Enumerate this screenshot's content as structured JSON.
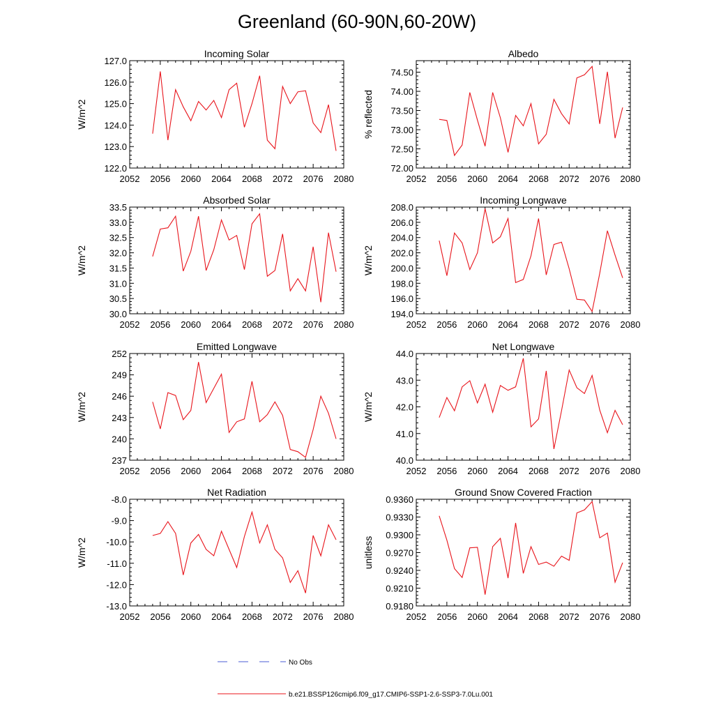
{
  "figure": {
    "title": "Greenland (60-90N,60-20W)",
    "legend": [
      {
        "label": "No Obs",
        "color": "#4a5bd4",
        "dash": "dashed"
      },
      {
        "label": "b.e21.BSSP126cmip6.f09_g17.CMIP6-SSP1-2.6-SSP3-7.0Lu.001",
        "color": "#e8141b",
        "dash": "solid"
      }
    ]
  },
  "chart_data": [
    {
      "type": "line",
      "title": "Incoming Solar",
      "ylabel": "W/m^2",
      "xlim": [
        2052,
        2080
      ],
      "ylim": [
        122.0,
        127.0
      ],
      "xticks": [
        2052,
        2056,
        2060,
        2064,
        2068,
        2072,
        2076,
        2080
      ],
      "yticks": [
        "122.0",
        "123.0",
        "124.0",
        "125.0",
        "126.0",
        "127.0"
      ],
      "series": [
        {
          "x": [
            2055,
            2056,
            2057,
            2058,
            2059,
            2060,
            2061,
            2062,
            2063,
            2064,
            2065,
            2066,
            2067,
            2068,
            2069,
            2070,
            2071,
            2072,
            2073,
            2074,
            2075,
            2076,
            2077,
            2078,
            2079
          ],
          "values": [
            123.6,
            126.5,
            123.3,
            125.65,
            124.85,
            124.2,
            125.1,
            124.7,
            125.15,
            124.35,
            125.65,
            125.95,
            123.9,
            125.0,
            126.3,
            123.3,
            122.9,
            125.8,
            125.0,
            125.55,
            125.6,
            124.1,
            123.65,
            124.95,
            122.8
          ]
        }
      ]
    },
    {
      "type": "line",
      "title": "Albedo",
      "ylabel": "% reflected",
      "xlim": [
        2052,
        2080
      ],
      "ylim": [
        72.0,
        74.8
      ],
      "xticks": [
        2052,
        2056,
        2060,
        2064,
        2068,
        2072,
        2076,
        2080
      ],
      "yticks": [
        "72.00",
        "72.50",
        "73.00",
        "73.50",
        "74.00",
        "74.50"
      ],
      "series": [
        {
          "x": [
            2055,
            2056,
            2057,
            2058,
            2059,
            2060,
            2061,
            2062,
            2063,
            2064,
            2065,
            2066,
            2067,
            2068,
            2069,
            2070,
            2071,
            2072,
            2073,
            2074,
            2075,
            2076,
            2077,
            2078,
            2079
          ],
          "values": [
            73.27,
            73.24,
            72.33,
            72.6,
            73.97,
            73.25,
            72.57,
            73.97,
            73.31,
            72.41,
            73.37,
            73.1,
            73.68,
            72.63,
            72.88,
            73.79,
            73.42,
            73.15,
            74.35,
            74.43,
            74.65,
            73.15,
            74.51,
            72.78,
            73.58
          ]
        }
      ]
    },
    {
      "type": "line",
      "title": "Absorbed Solar",
      "ylabel": "W/m^2",
      "xlim": [
        2052,
        2080
      ],
      "ylim": [
        30.0,
        33.5
      ],
      "xticks": [
        2052,
        2056,
        2060,
        2064,
        2068,
        2072,
        2076,
        2080
      ],
      "yticks": [
        "30.0",
        "30.5",
        "31.0",
        "31.5",
        "32.0",
        "32.5",
        "33.0",
        "33.5"
      ],
      "series": [
        {
          "x": [
            2055,
            2056,
            2057,
            2058,
            2059,
            2060,
            2061,
            2062,
            2063,
            2064,
            2065,
            2066,
            2067,
            2068,
            2069,
            2070,
            2071,
            2072,
            2073,
            2074,
            2075,
            2076,
            2077,
            2078,
            2079
          ],
          "values": [
            31.88,
            32.78,
            32.82,
            33.2,
            31.4,
            32.05,
            33.2,
            31.42,
            32.1,
            33.08,
            32.42,
            32.57,
            31.45,
            32.95,
            33.28,
            31.23,
            31.42,
            32.62,
            30.75,
            31.15,
            30.75,
            32.2,
            30.38,
            32.66,
            31.38
          ]
        }
      ]
    },
    {
      "type": "line",
      "title": "Incoming Longwave",
      "ylabel": "W/m^2",
      "xlim": [
        2052,
        2080
      ],
      "ylim": [
        194.0,
        208.0
      ],
      "xticks": [
        2052,
        2056,
        2060,
        2064,
        2068,
        2072,
        2076,
        2080
      ],
      "yticks": [
        "194.0",
        "196.0",
        "198.0",
        "200.0",
        "202.0",
        "204.0",
        "206.0",
        "208.0"
      ],
      "series": [
        {
          "x": [
            2055,
            2056,
            2057,
            2058,
            2059,
            2060,
            2061,
            2062,
            2063,
            2064,
            2065,
            2066,
            2067,
            2068,
            2069,
            2070,
            2071,
            2072,
            2073,
            2074,
            2075,
            2076,
            2077,
            2078,
            2079
          ],
          "values": [
            203.6,
            199.0,
            204.6,
            203.3,
            199.8,
            202.0,
            207.8,
            203.3,
            204.1,
            206.5,
            198.1,
            198.5,
            201.6,
            206.5,
            199.1,
            203.1,
            203.4,
            199.9,
            195.9,
            195.8,
            194.3,
            199.3,
            204.9,
            201.7,
            198.7
          ]
        }
      ]
    },
    {
      "type": "line",
      "title": "Emitted Longwave",
      "ylabel": "W/m^2",
      "xlim": [
        2052,
        2080
      ],
      "ylim": [
        237,
        252
      ],
      "xticks": [
        2052,
        2056,
        2060,
        2064,
        2068,
        2072,
        2076,
        2080
      ],
      "yticks": [
        "237",
        "240",
        "243",
        "246",
        "249",
        "252"
      ],
      "series": [
        {
          "x": [
            2055,
            2056,
            2057,
            2058,
            2059,
            2060,
            2061,
            2062,
            2063,
            2064,
            2065,
            2066,
            2067,
            2068,
            2069,
            2070,
            2071,
            2072,
            2073,
            2074,
            2075,
            2076,
            2077,
            2078,
            2079
          ],
          "values": [
            245.2,
            241.4,
            246.5,
            246.1,
            242.7,
            244.0,
            250.8,
            245.1,
            247.1,
            249.1,
            240.9,
            242.4,
            242.8,
            248.1,
            242.4,
            243.4,
            245.2,
            243.3,
            238.5,
            238.2,
            237.4,
            241.3,
            246.0,
            243.6,
            240.0
          ]
        }
      ]
    },
    {
      "type": "line",
      "title": "Net Longwave",
      "ylabel": "W/m^2",
      "xlim": [
        2052,
        2080
      ],
      "ylim": [
        40.0,
        44.0
      ],
      "xticks": [
        2052,
        2056,
        2060,
        2064,
        2068,
        2072,
        2076,
        2080
      ],
      "yticks": [
        "40.0",
        "41.0",
        "42.0",
        "43.0",
        "44.0"
      ],
      "series": [
        {
          "x": [
            2055,
            2056,
            2057,
            2058,
            2059,
            2060,
            2061,
            2062,
            2063,
            2064,
            2065,
            2066,
            2067,
            2068,
            2069,
            2070,
            2071,
            2072,
            2073,
            2074,
            2075,
            2076,
            2077,
            2078,
            2079
          ],
          "values": [
            41.6,
            42.35,
            41.85,
            42.75,
            42.98,
            42.15,
            42.85,
            41.8,
            42.8,
            42.62,
            42.75,
            43.82,
            41.25,
            41.55,
            43.35,
            40.42,
            41.85,
            43.38,
            42.72,
            42.5,
            43.18,
            41.88,
            41.03,
            41.87,
            41.33
          ]
        }
      ]
    },
    {
      "type": "line",
      "title": "Net Radiation",
      "ylabel": "W/m^2",
      "xlim": [
        2052,
        2080
      ],
      "ylim": [
        -13.0,
        -8.0
      ],
      "xticks": [
        2052,
        2056,
        2060,
        2064,
        2068,
        2072,
        2076,
        2080
      ],
      "yticks": [
        "-13.0",
        "-12.0",
        "-11.0",
        "-10.0",
        "-9.0",
        "-8.0"
      ],
      "series": [
        {
          "x": [
            2055,
            2056,
            2057,
            2058,
            2059,
            2060,
            2061,
            2062,
            2063,
            2064,
            2065,
            2066,
            2067,
            2068,
            2069,
            2070,
            2071,
            2072,
            2073,
            2074,
            2075,
            2076,
            2077,
            2078,
            2079
          ],
          "values": [
            -9.7,
            -9.6,
            -9.05,
            -9.6,
            -11.55,
            -10.05,
            -9.65,
            -10.35,
            -10.65,
            -9.5,
            -10.35,
            -11.2,
            -9.75,
            -8.6,
            -10.05,
            -9.2,
            -10.35,
            -10.75,
            -11.9,
            -11.35,
            -12.4,
            -9.7,
            -10.65,
            -9.2,
            -9.9
          ]
        }
      ]
    },
    {
      "type": "line",
      "title": "Ground Snow Covered Fraction",
      "ylabel": "unitless",
      "xlim": [
        2052,
        2080
      ],
      "ylim": [
        0.918,
        0.936
      ],
      "xticks": [
        2052,
        2056,
        2060,
        2064,
        2068,
        2072,
        2076,
        2080
      ],
      "yticks": [
        "0.9180",
        "0.9210",
        "0.9240",
        "0.9270",
        "0.9300",
        "0.9330",
        "0.9360"
      ],
      "series": [
        {
          "x": [
            2055,
            2056,
            2057,
            2058,
            2059,
            2060,
            2061,
            2062,
            2063,
            2064,
            2065,
            2066,
            2067,
            2068,
            2069,
            2070,
            2071,
            2072,
            2073,
            2074,
            2075,
            2076,
            2077,
            2078,
            2079
          ],
          "values": [
            0.9332,
            0.9291,
            0.9243,
            0.9228,
            0.9278,
            0.9279,
            0.9199,
            0.928,
            0.9294,
            0.9227,
            0.932,
            0.9235,
            0.928,
            0.925,
            0.9254,
            0.9247,
            0.9264,
            0.9257,
            0.9337,
            0.9342,
            0.9356,
            0.9295,
            0.9303,
            0.922,
            0.9253
          ]
        }
      ]
    }
  ]
}
